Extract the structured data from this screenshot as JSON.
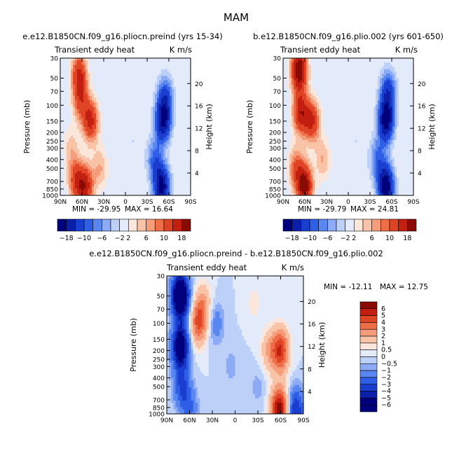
{
  "figure": {
    "title": "MAM"
  },
  "chart_data": [
    {
      "type": "heatmap",
      "title": "e.e12.B1850CN.f09_g16.pliocn.preind (yrs 15-34)",
      "subtitle_left": "Transient eddy heat",
      "subtitle_right": "K m/s",
      "ylabel": "Pressure (mb)",
      "ylabel_right": "Height (km)",
      "x_ticks": [
        "90N",
        "60N",
        "30N",
        "0",
        "30S",
        "60S",
        "90S"
      ],
      "x_tick_values": [
        90,
        60,
        30,
        0,
        -30,
        -60,
        -90
      ],
      "y_ticks": [
        "30",
        "50",
        "70",
        "100",
        "150",
        "200",
        "250",
        "300",
        "400",
        "500",
        "700",
        "850",
        "1000"
      ],
      "y_tick_values": [
        30,
        50,
        70,
        100,
        150,
        200,
        250,
        300,
        400,
        500,
        700,
        850,
        1000
      ],
      "y_scale": "log",
      "y_right_ticks": [
        "20",
        "16",
        "12",
        "8",
        "4"
      ],
      "y_right_values": [
        20,
        16,
        12,
        8,
        4
      ],
      "xlim": [
        90,
        -90
      ],
      "ylim": [
        1000,
        30
      ],
      "min_label": "MIN = -29.95",
      "max_label": "MAX = 16.64",
      "min": -29.95,
      "max": 16.64,
      "colorbar": {
        "orientation": "horizontal",
        "levels": [
          -18,
          -10,
          -6,
          -2,
          2,
          6,
          10,
          18
        ],
        "labels": [
          "-18",
          "-10",
          "-6",
          "-2",
          "2",
          "6",
          "10",
          "18"
        ]
      },
      "features": [
        {
          "lat": 64,
          "p": 45,
          "value": 14
        },
        {
          "lat": 62,
          "p": 90,
          "value": 10
        },
        {
          "lat": 48,
          "p": 150,
          "value": 15
        },
        {
          "lat": 55,
          "p": 800,
          "value": 15
        },
        {
          "lat": 68,
          "p": 700,
          "value": 12
        },
        {
          "lat": 35,
          "p": 500,
          "value": 6
        },
        {
          "lat": 75,
          "p": 300,
          "value": 5
        },
        {
          "lat": -52,
          "p": 150,
          "value": -18
        },
        {
          "lat": -55,
          "p": 80,
          "value": -10
        },
        {
          "lat": -50,
          "p": 800,
          "value": -20
        },
        {
          "lat": -40,
          "p": 400,
          "value": -8
        },
        {
          "lat": -10,
          "p": 250,
          "value": -2
        },
        {
          "lat": -80,
          "p": 300,
          "value": 2
        }
      ]
    },
    {
      "type": "heatmap",
      "title": "b.e12.B1850CN.f09_g16.plio.002 (yrs 601-650)",
      "subtitle_left": "Transient eddy heat",
      "subtitle_right": "K m/s",
      "ylabel": "Pressure (mb)",
      "ylabel_right": "Height (km)",
      "x_ticks": [
        "90N",
        "60N",
        "30N",
        "0",
        "30S",
        "60S",
        "90S"
      ],
      "x_tick_values": [
        90,
        60,
        30,
        0,
        -30,
        -60,
        -90
      ],
      "y_ticks": [
        "30",
        "50",
        "70",
        "100",
        "150",
        "200",
        "250",
        "300",
        "400",
        "500",
        "700",
        "850",
        "1000"
      ],
      "y_tick_values": [
        30,
        50,
        70,
        100,
        150,
        200,
        250,
        300,
        400,
        500,
        700,
        850,
        1000
      ],
      "y_scale": "log",
      "y_right_ticks": [
        "20",
        "16",
        "12",
        "8",
        "4"
      ],
      "y_right_values": [
        20,
        16,
        12,
        8,
        4
      ],
      "xlim": [
        90,
        -90
      ],
      "ylim": [
        1000,
        30
      ],
      "min_label": "MIN = -29.79",
      "max_label": "MAX = 24.81",
      "min": -29.79,
      "max": 24.81,
      "colorbar": {
        "orientation": "horizontal",
        "levels": [
          -18,
          -10,
          -6,
          -2,
          2,
          6,
          10,
          18
        ],
        "labels": [
          "-18",
          "-10",
          "-6",
          "-2",
          "2",
          "6",
          "10",
          "18"
        ]
      },
      "features": [
        {
          "lat": 68,
          "p": 40,
          "value": 22
        },
        {
          "lat": 66,
          "p": 120,
          "value": 16
        },
        {
          "lat": 50,
          "p": 150,
          "value": 14
        },
        {
          "lat": 60,
          "p": 800,
          "value": 20
        },
        {
          "lat": 72,
          "p": 500,
          "value": 10
        },
        {
          "lat": 35,
          "p": 400,
          "value": 6
        },
        {
          "lat": -52,
          "p": 150,
          "value": -20
        },
        {
          "lat": -55,
          "p": 70,
          "value": -12
        },
        {
          "lat": -52,
          "p": 800,
          "value": -22
        },
        {
          "lat": -40,
          "p": 400,
          "value": -8
        },
        {
          "lat": -10,
          "p": 250,
          "value": -2
        },
        {
          "lat": -80,
          "p": 300,
          "value": 2
        }
      ]
    },
    {
      "type": "heatmap",
      "title": "e.e12.B1850CN.f09_g16.pliocn.preind - b.e12.B1850CN.f09_g16.plio.002",
      "subtitle_left": "Transient eddy heat",
      "subtitle_right": "K m/s",
      "ylabel": "Pressure (mb)",
      "ylabel_right": "Height (km)",
      "x_ticks": [
        "90N",
        "60N",
        "30N",
        "0",
        "30S",
        "60S",
        "90S"
      ],
      "x_tick_values": [
        90,
        60,
        30,
        0,
        -30,
        -60,
        -90
      ],
      "y_ticks": [
        "30",
        "50",
        "70",
        "100",
        "150",
        "200",
        "250",
        "300",
        "400",
        "500",
        "700",
        "850",
        "1000"
      ],
      "y_tick_values": [
        30,
        50,
        70,
        100,
        150,
        200,
        250,
        300,
        400,
        500,
        700,
        850,
        1000
      ],
      "y_scale": "log",
      "y_right_ticks": [
        "20",
        "16",
        "12",
        "8",
        "4"
      ],
      "y_right_values": [
        20,
        16,
        12,
        8,
        4
      ],
      "xlim": [
        90,
        -90
      ],
      "ylim": [
        1000,
        30
      ],
      "min_label": "MIN = -12.11",
      "max_label": "MAX = 12.75",
      "min": -12.11,
      "max": 12.75,
      "colorbar": {
        "orientation": "vertical",
        "levels": [
          6,
          5,
          4,
          3,
          2,
          1,
          0.5,
          0,
          -0.5,
          -1,
          -2,
          -3,
          -4,
          -5,
          -6
        ],
        "labels": [
          "6",
          "5",
          "4",
          "3",
          "2",
          "1",
          "0.5",
          "0",
          "-0.5",
          "-1",
          "-2",
          "-3",
          "-4",
          "-5",
          "-6"
        ]
      },
      "features": [
        {
          "lat": 72,
          "p": 50,
          "value": -9
        },
        {
          "lat": 72,
          "p": 180,
          "value": -7
        },
        {
          "lat": 70,
          "p": 500,
          "value": -3
        },
        {
          "lat": 48,
          "p": 100,
          "value": 4
        },
        {
          "lat": 42,
          "p": 60,
          "value": 2
        },
        {
          "lat": 25,
          "p": 100,
          "value": -1.5
        },
        {
          "lat": -60,
          "p": 200,
          "value": 5
        },
        {
          "lat": -45,
          "p": 200,
          "value": 2
        },
        {
          "lat": -58,
          "p": 900,
          "value": 7
        },
        {
          "lat": -80,
          "p": 900,
          "value": -4
        },
        {
          "lat": 60,
          "p": 880,
          "value": -2
        },
        {
          "lat": 5,
          "p": 300,
          "value": -0.7
        },
        {
          "lat": -25,
          "p": 60,
          "value": 0.7
        },
        {
          "lat": -30,
          "p": 500,
          "value": -0.7
        }
      ]
    }
  ]
}
